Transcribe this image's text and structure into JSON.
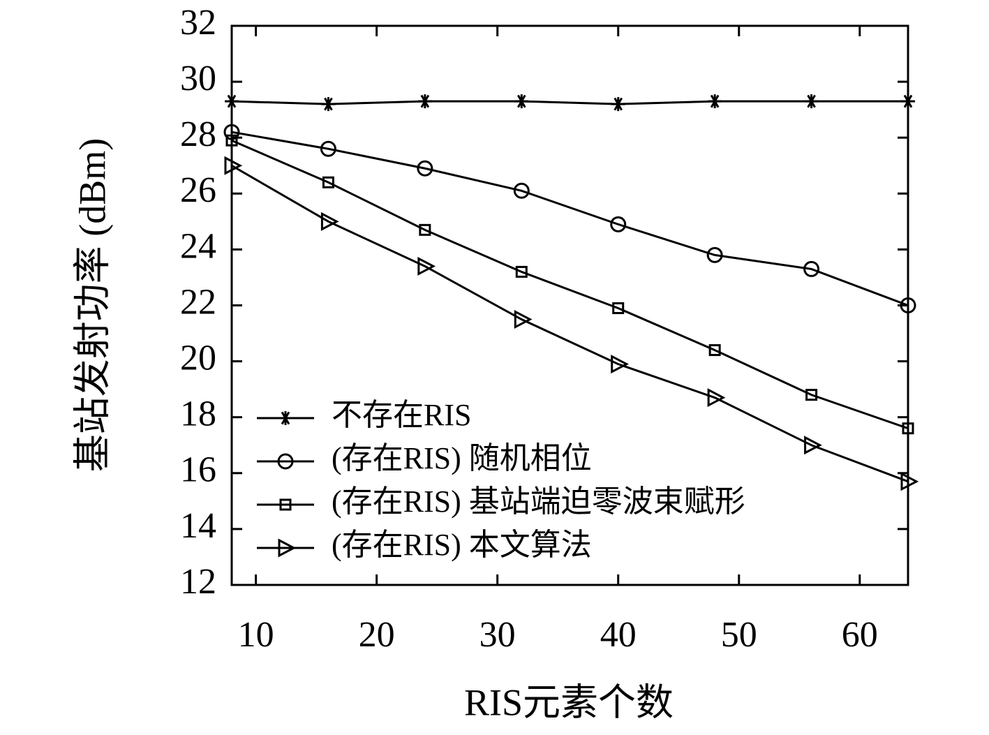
{
  "chart_data": {
    "type": "line",
    "xlabel": "RIS元素个数",
    "ylabel": "基站发射功率 (dBm)",
    "x": [
      8,
      16,
      24,
      32,
      40,
      48,
      56,
      64
    ],
    "series": [
      {
        "name": "不存在RIS",
        "color": "#000000",
        "marker": "star",
        "values": [
          29.3,
          29.2,
          29.3,
          29.3,
          29.2,
          29.3,
          29.3,
          29.3
        ]
      },
      {
        "name": "(存在RIS) 随机相位",
        "color": "#000000",
        "marker": "circle",
        "values": [
          28.2,
          27.6,
          26.9,
          26.1,
          24.9,
          23.8,
          23.3,
          22.0
        ]
      },
      {
        "name": "(存在RIS) 基站端迫零波束赋形",
        "color": "#000000",
        "marker": "square",
        "values": [
          27.9,
          26.4,
          24.7,
          23.2,
          21.9,
          20.4,
          18.8,
          17.6
        ]
      },
      {
        "name": "(存在RIS) 本文算法",
        "color": "#000000",
        "marker": "triangle-right",
        "values": [
          27.0,
          25.0,
          23.4,
          21.5,
          19.9,
          18.7,
          17.0,
          15.7
        ]
      }
    ],
    "xlim": [
      8,
      64
    ],
    "xticks": [
      10,
      20,
      30,
      40,
      50,
      60
    ],
    "ylim": [
      12,
      32
    ],
    "yticks": [
      12,
      14,
      16,
      18,
      20,
      22,
      24,
      26,
      28,
      30,
      32
    ],
    "legend": "lower-left",
    "grid": false
  }
}
